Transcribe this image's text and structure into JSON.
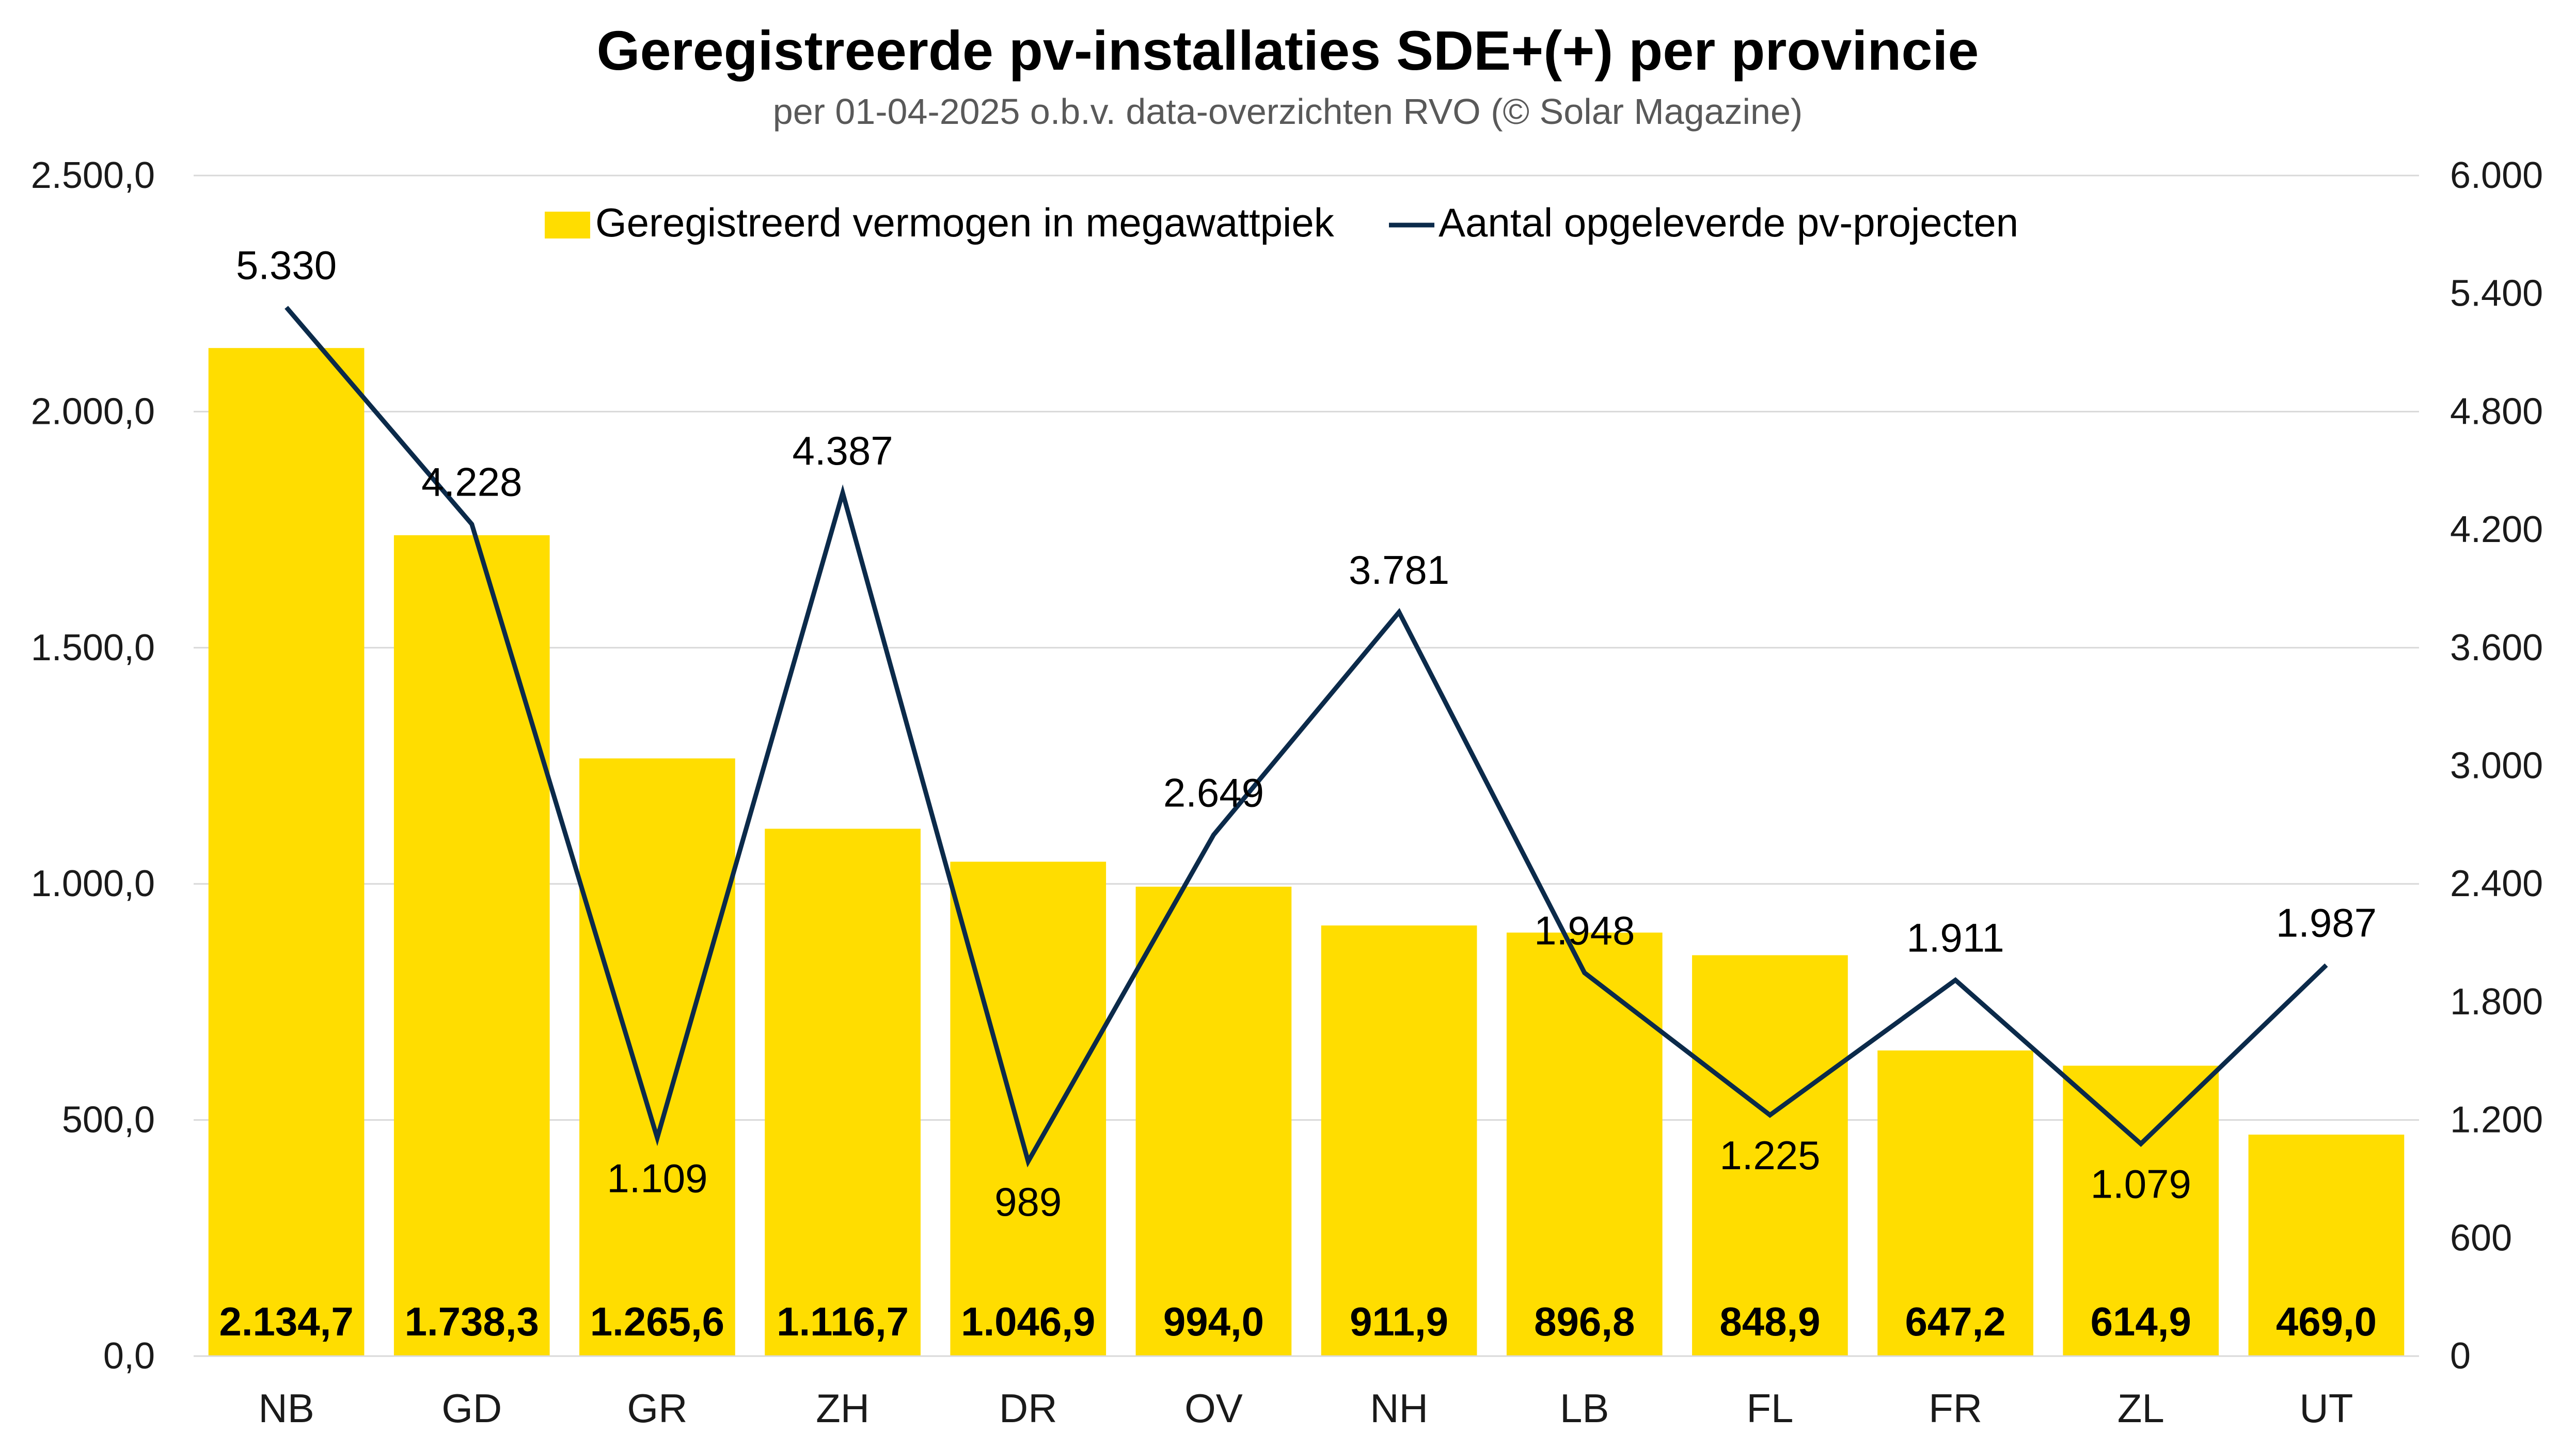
{
  "chart_data": {
    "type": "bar",
    "title": "Geregistreerde pv-installaties SDE+(+) per provincie",
    "subtitle": "per 01-04-2025 o.b.v. data-overzichten RVO (© Solar Magazine)",
    "categories": [
      "NB",
      "GD",
      "GR",
      "ZH",
      "DR",
      "OV",
      "NH",
      "LB",
      "FL",
      "FR",
      "ZL",
      "UT"
    ],
    "series": [
      {
        "name": "Geregistreerd vermogen in megawattpiek",
        "type": "bar",
        "axis": "left",
        "color": "#FFDD00",
        "values": [
          2134.7,
          1738.3,
          1265.6,
          1116.7,
          1046.9,
          994.0,
          911.9,
          896.8,
          848.9,
          647.2,
          614.9,
          469.0
        ],
        "labels": [
          "2.134,7",
          "1.738,3",
          "1.265,6",
          "1.116,7",
          "1.046,9",
          "994,0",
          "911,9",
          "896,8",
          "848,9",
          "647,2",
          "614,9",
          "469,0"
        ]
      },
      {
        "name": "Aantal opgeleverde pv-projecten",
        "type": "line",
        "axis": "right",
        "color": "#0B2A4A",
        "values": [
          5330,
          4228,
          1109,
          4387,
          989,
          2649,
          3781,
          1948,
          1225,
          1911,
          1079,
          1987
        ],
        "labels": [
          "5.330",
          "4.228",
          "1.109",
          "4.387",
          "989",
          "2.649",
          "3.781",
          "1.948",
          "1.225",
          "1.911",
          "1.079",
          "1.987"
        ]
      }
    ],
    "y_left": {
      "lim": [
        0,
        2500
      ],
      "ticks": [
        0,
        500,
        1000,
        1500,
        2000,
        2500
      ],
      "tick_labels": [
        "0,0",
        "500,0",
        "1.000,0",
        "1.500,0",
        "2.000,0",
        "2.500,0"
      ]
    },
    "y_right": {
      "lim": [
        0,
        6000
      ],
      "ticks": [
        0,
        600,
        1200,
        1800,
        2400,
        3000,
        3600,
        4200,
        4800,
        5400,
        6000
      ],
      "tick_labels": [
        "0",
        "600",
        "1.200",
        "1.800",
        "2.400",
        "3.000",
        "3.600",
        "4.200",
        "4.800",
        "5.400",
        "6.000"
      ]
    },
    "grid": true,
    "legend": "top-center",
    "xlabel": "",
    "ylabel": "",
    "gridline_color": "#D9D9D9"
  }
}
